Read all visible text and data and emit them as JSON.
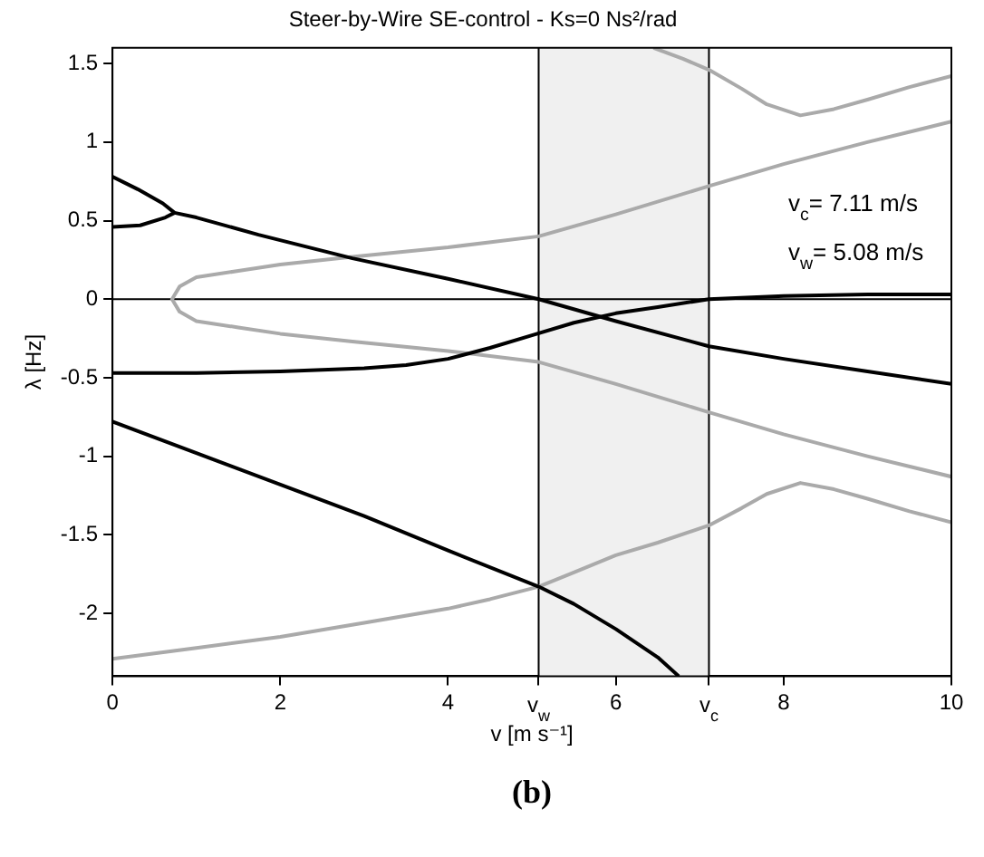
{
  "chart_data": {
    "type": "line",
    "title": "Steer-by-Wire SE-control - Ks=0 Ns²/rad",
    "xlabel": "v [m s⁻¹]",
    "ylabel": "λ [Hz]",
    "xlim": [
      0,
      10
    ],
    "ylim": [
      -2.4,
      1.6
    ],
    "xticks": [
      0,
      2,
      4,
      {
        "value": 5.08,
        "label": "v$_{w}$"
      },
      6,
      {
        "value": 7.11,
        "label": "v$_{c}$"
      },
      8,
      10
    ],
    "yticks": [
      -2,
      -1.5,
      -1,
      -0.5,
      0,
      0.5,
      1,
      1.5
    ],
    "marker": "none",
    "grid": false,
    "series": [
      {
        "color": "#000000",
        "x": [
          0,
          0.3,
          0.6,
          0.74,
          1.0,
          1.74,
          2.86,
          4.0,
          5.08,
          6.0,
          7.11,
          8.0,
          9.0,
          10
        ],
        "values": [
          0.78,
          0.7,
          0.61,
          0.55,
          0.52,
          0.41,
          0.26,
          0.13,
          0,
          -0.14,
          -0.3,
          -0.38,
          -0.46,
          -0.54
        ]
      },
      {
        "color": "#000000",
        "x": [
          0,
          0.33,
          0.63,
          0.74
        ],
        "values": [
          0.46,
          0.47,
          0.52,
          0.55
        ]
      },
      {
        "color": "#000000",
        "x": [
          0,
          1,
          2,
          3,
          3.5,
          4,
          4.5,
          5,
          5.5,
          6,
          6.5,
          7.11,
          8,
          9,
          10
        ],
        "values": [
          -0.47,
          -0.47,
          -0.46,
          -0.44,
          -0.42,
          -0.38,
          -0.31,
          -0.23,
          -0.15,
          -0.09,
          -0.05,
          0,
          0.02,
          0.03,
          0.03
        ]
      },
      {
        "color": "#000000",
        "x": [
          0,
          1,
          2,
          3,
          4,
          5.08,
          5.5,
          6,
          6.5,
          6.75
        ],
        "values": [
          -0.78,
          -0.98,
          -1.18,
          -1.38,
          -1.6,
          -1.83,
          -1.94,
          -2.1,
          -2.28,
          -2.4
        ]
      },
      {
        "color": "#aaaaaa",
        "x": [
          10,
          9,
          8,
          7.11,
          6,
          5.08,
          4,
          2.86,
          2,
          1.5,
          1.0,
          0.8,
          0.71,
          0.8,
          1.0,
          1.5,
          2,
          2.86,
          4,
          5.08,
          6,
          7.11,
          8,
          9,
          10
        ],
        "values": [
          -1.13,
          -1.0,
          -0.86,
          -0.72,
          -0.54,
          -0.4,
          -0.33,
          -0.27,
          -0.22,
          -0.18,
          -0.14,
          -0.08,
          0,
          0.08,
          0.14,
          0.18,
          0.22,
          0.27,
          0.33,
          0.4,
          0.54,
          0.72,
          0.86,
          1.0,
          1.13
        ]
      },
      {
        "color": "#aaaaaa",
        "x": [
          6.45,
          6.8,
          7.11,
          7.5,
          7.8,
          8.2,
          8.6,
          9,
          9.5,
          10
        ],
        "values": [
          1.6,
          1.53,
          1.46,
          1.34,
          1.24,
          1.17,
          1.21,
          1.27,
          1.35,
          1.42
        ]
      },
      {
        "color": "#aaaaaa",
        "x": [
          0,
          1,
          2,
          3,
          4,
          4.5,
          5.08,
          5.5,
          6,
          6.5,
          7.11,
          7.5,
          7.8,
          8.2,
          8.6,
          9,
          9.5,
          10
        ],
        "values": [
          -2.29,
          -2.22,
          -2.15,
          -2.06,
          -1.97,
          -1.91,
          -1.83,
          -1.74,
          -1.63,
          -1.55,
          -1.44,
          -1.33,
          -1.24,
          -1.17,
          -1.21,
          -1.27,
          -1.35,
          -1.42
        ]
      }
    ],
    "ref_lines": [
      {
        "axis": "x",
        "value": 5.08,
        "color": "#000000"
      },
      {
        "axis": "x",
        "value": 7.11,
        "color": "#000000"
      },
      {
        "axis": "y",
        "value": 0,
        "color": "#000000"
      }
    ],
    "bands": [
      {
        "axis": "x",
        "from": 5.08,
        "to": 7.11,
        "color": "#f0f0f0"
      }
    ],
    "annotations": [
      "v$_{c}$= 7.11 m/s",
      "v$_{w}$= 5.08 m/s",
      "(b)"
    ]
  }
}
